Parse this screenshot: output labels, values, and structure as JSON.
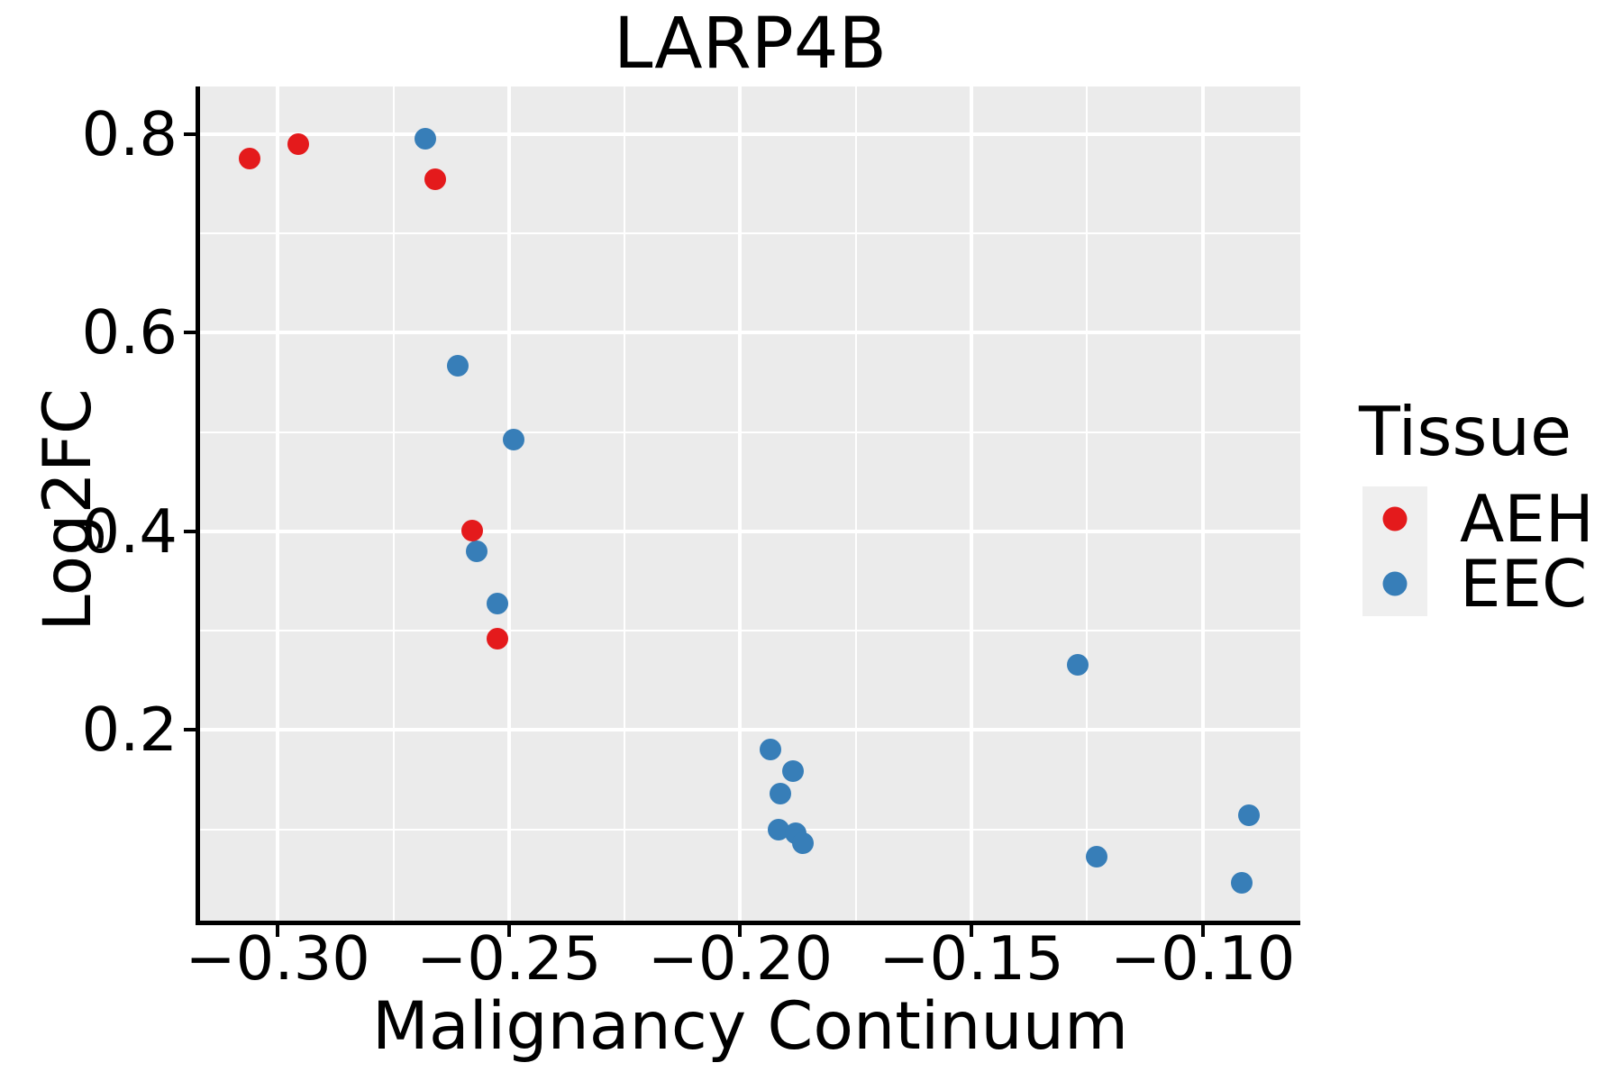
{
  "figure_title": "LARP4B",
  "chart_data": {
    "type": "scatter",
    "title": "LARP4B",
    "xlabel": "Malignancy Continuum",
    "ylabel": "Log2FC",
    "xlim": [
      -0.3168,
      -0.0789
    ],
    "ylim": [
      0.008,
      0.848
    ],
    "x_major_ticks": [
      -0.3,
      -0.25,
      -0.2,
      -0.15,
      -0.1
    ],
    "x_tick_labels": [
      "−0.30",
      "−0.25",
      "−0.20",
      "−0.15",
      "−0.10"
    ],
    "x_minor_ticks": [
      -0.275,
      -0.225,
      -0.175,
      -0.125
    ],
    "y_major_ticks": [
      0.2,
      0.4,
      0.6,
      0.8
    ],
    "y_tick_labels": [
      "0.2",
      "0.4",
      "0.6",
      "0.8"
    ],
    "y_minor_ticks": [
      0.1,
      0.3,
      0.5,
      0.7
    ],
    "grid": true,
    "legend_position": "right",
    "series": [
      {
        "name": "EEC",
        "color": "#377EB8",
        "points": [
          [
            -0.268,
            0.795
          ],
          [
            -0.261,
            0.567
          ],
          [
            -0.249,
            0.492
          ],
          [
            -0.257,
            0.38
          ],
          [
            -0.2525,
            0.327
          ],
          [
            -0.127,
            0.266
          ],
          [
            -0.1935,
            0.18
          ],
          [
            -0.1885,
            0.159
          ],
          [
            -0.1913,
            0.136
          ],
          [
            -0.1917,
            0.1
          ],
          [
            -0.188,
            0.096
          ],
          [
            -0.1865,
            0.086
          ],
          [
            -0.123,
            0.072
          ],
          [
            -0.09,
            0.114
          ],
          [
            -0.0915,
            0.046
          ]
        ]
      },
      {
        "name": "AEH",
        "color": "#E41A1C",
        "points": [
          [
            -0.306,
            0.775
          ],
          [
            -0.2955,
            0.79
          ],
          [
            -0.266,
            0.755
          ],
          [
            -0.258,
            0.401
          ],
          [
            -0.2525,
            0.292
          ]
        ]
      }
    ]
  },
  "legend": {
    "title": "Tissue",
    "entries": [
      {
        "label": "AEH",
        "color": "#E41A1C"
      },
      {
        "label": "EEC",
        "color": "#377EB8"
      }
    ]
  },
  "style": {
    "panel_bg": "#EBEBEB",
    "grid_major_color": "#FFFFFF",
    "grid_minor_color": "#FFFFFF",
    "axis_color": "#000000",
    "text_color": "#000000",
    "legend_key_bg": "#EFEFEF"
  }
}
